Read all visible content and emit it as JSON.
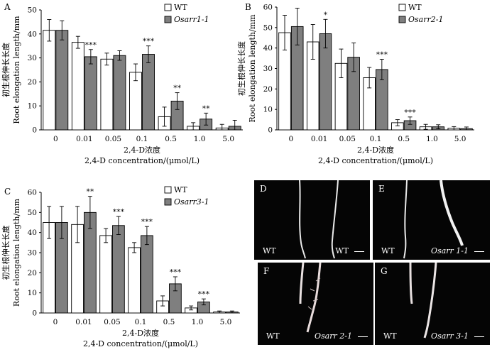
{
  "chart_data": [
    {
      "type": "bar",
      "panel": "A",
      "categories": [
        "0",
        "0.01",
        "0.05",
        "0.1",
        "0.5",
        "1.0",
        "5.0"
      ],
      "series": [
        {
          "name": "WT",
          "values": [
            41.5,
            36.5,
            29.5,
            24,
            5.5,
            1.5,
            0.8
          ],
          "errors": [
            4.5,
            2.5,
            2.5,
            3.5,
            4,
            1.5,
            1.5
          ],
          "color": "#ffffff"
        },
        {
          "name": "Osarr1-1",
          "values": [
            41.5,
            30.5,
            31,
            31.5,
            12,
            4.5,
            1.5
          ],
          "errors": [
            4,
            3,
            2,
            3.5,
            3.5,
            2.5,
            2.5
          ],
          "color": "#7f7f7f"
        }
      ],
      "significance": [
        "",
        "***",
        "",
        "***",
        "**",
        "**",
        ""
      ],
      "ylabel_zh": "初生根伸长长度",
      "ylabel_en": "Root elongation length/mm",
      "xlabel_zh": "2,4-D浓度",
      "xlabel_en": "2,4-D concentration/(μmol/L)",
      "ylim": [
        0,
        50
      ],
      "yticks": [
        0,
        10,
        20,
        30,
        40,
        50
      ],
      "legend_position": "top-right"
    },
    {
      "type": "bar",
      "panel": "B",
      "categories": [
        "0",
        "0.01",
        "0.05",
        "0.1",
        "0.5",
        "1.0",
        "5.0"
      ],
      "series": [
        {
          "name": "WT",
          "values": [
            47.5,
            43,
            32.5,
            25.5,
            3.5,
            1.5,
            0.8
          ],
          "errors": [
            8.5,
            8.5,
            7,
            5,
            1.5,
            1.2,
            0.8
          ],
          "color": "#ffffff"
        },
        {
          "name": "Osarr2-1",
          "values": [
            50.5,
            47,
            35.5,
            29.5,
            4.5,
            1.5,
            0.6
          ],
          "errors": [
            9,
            7,
            7,
            5,
            1.8,
            1,
            0.8
          ],
          "color": "#7f7f7f"
        }
      ],
      "significance": [
        "",
        "*",
        "",
        "***",
        "***",
        "",
        ""
      ],
      "ylabel_zh": "初生根伸长长度",
      "ylabel_en": "Root elongation length/mm",
      "xlabel_zh": "2,4-D浓度",
      "xlabel_en": "2,4-D concentration/(μmol/L)",
      "ylim": [
        0,
        60
      ],
      "yticks": [
        0,
        10,
        20,
        30,
        40,
        50,
        60
      ],
      "legend_position": "top-right"
    },
    {
      "type": "bar",
      "panel": "C",
      "categories": [
        "0",
        "0.01",
        "0.05",
        "0.1",
        "0.5",
        "1.0",
        "5.0"
      ],
      "series": [
        {
          "name": "WT",
          "values": [
            45,
            44,
            38.5,
            32.5,
            6,
            2.5,
            0.5
          ],
          "errors": [
            8,
            9,
            3.5,
            2.5,
            2.5,
            1,
            0.5
          ],
          "color": "#ffffff"
        },
        {
          "name": "Osarr3-1",
          "values": [
            45,
            50,
            43.5,
            38.5,
            14.5,
            5.5,
            0.5
          ],
          "errors": [
            8,
            8,
            4.5,
            4.5,
            3.5,
            1.5,
            0.5
          ],
          "color": "#7f7f7f"
        }
      ],
      "significance": [
        "",
        "**",
        "***",
        "***",
        "***",
        "***",
        ""
      ],
      "ylabel_zh": "初生根伸长长度",
      "ylabel_en": "Root elongation length/mm",
      "xlabel_zh": "2,4-D浓度",
      "xlabel_en": "2,4-D concentration/(μmol/L)",
      "ylim": [
        0,
        60
      ],
      "yticks": [
        0,
        10,
        20,
        30,
        40,
        50,
        60
      ],
      "legend_position": "top-right"
    }
  ],
  "photos": [
    {
      "label": "D",
      "left_text": "WT",
      "right_text": "WT"
    },
    {
      "label": "E",
      "left_text": "WT",
      "right_text": "Osarr 1-1"
    },
    {
      "label": "F",
      "left_text": "WT",
      "right_text": "Osarr 2-1"
    },
    {
      "label": "G",
      "left_text": "WT",
      "right_text": "Osarr 3-1"
    }
  ]
}
